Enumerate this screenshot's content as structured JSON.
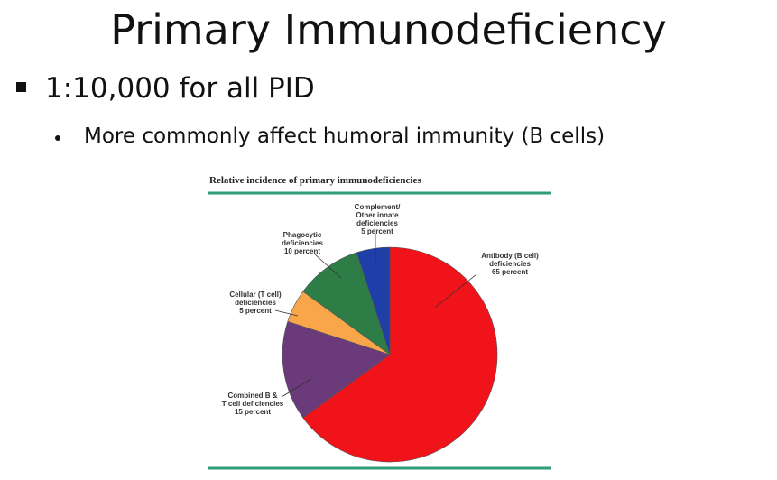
{
  "slide": {
    "title": "Primary Immunodeficiency",
    "bullet": "1:10,000 for all PID",
    "sub_bullet": "More commonly affect humoral immunity (B cells)"
  },
  "chart_data": {
    "type": "pie",
    "title": "Relative incidence of primary immunodeficiencies",
    "categories": [
      "Antibody (B cell)\ndeficiencies",
      "Combined B &\nT cell deficiencies",
      "Cellular (T cell)\ndeficiencies",
      "Phagocytic\ndeficiencies",
      "Complement/\nOther innate\ndeficiencies"
    ],
    "values": [
      65,
      15,
      5,
      10,
      5
    ],
    "value_labels": [
      "65 percent",
      "15 percent",
      "5 percent",
      "10 percent",
      "5 percent"
    ],
    "colors": [
      "#f0131a",
      "#6b3a7a",
      "#f9a64a",
      "#2e7d46",
      "#1f3fa8"
    ]
  }
}
